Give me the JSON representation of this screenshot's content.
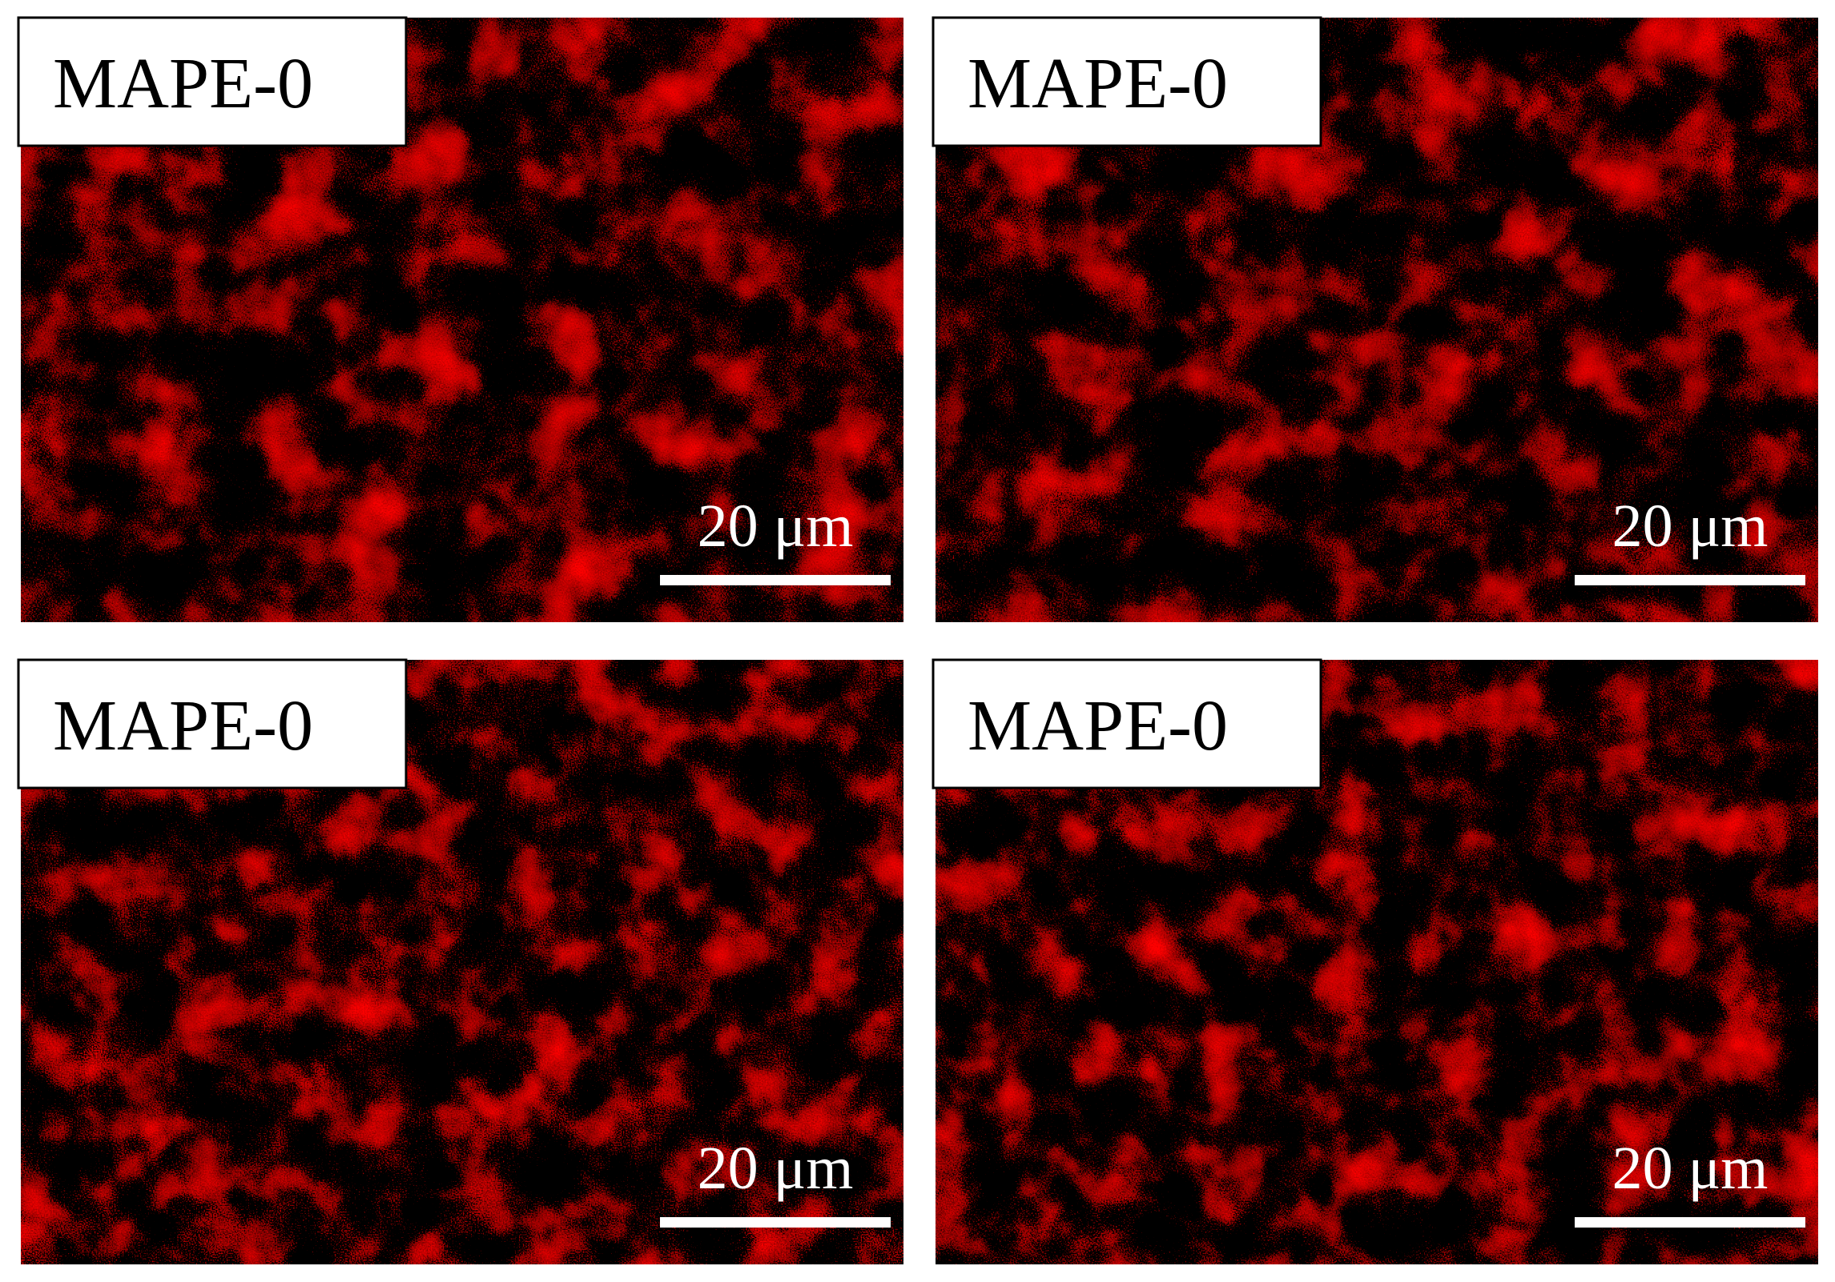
{
  "panels": [
    {
      "label": "MAPE-0",
      "scale_bar": "20 μm"
    },
    {
      "label": "MAPE-0",
      "scale_bar": "20 μm"
    },
    {
      "label": "MAPE-0",
      "scale_bar": "20 μm"
    },
    {
      "label": "MAPE-0",
      "scale_bar": "20 μm"
    }
  ]
}
